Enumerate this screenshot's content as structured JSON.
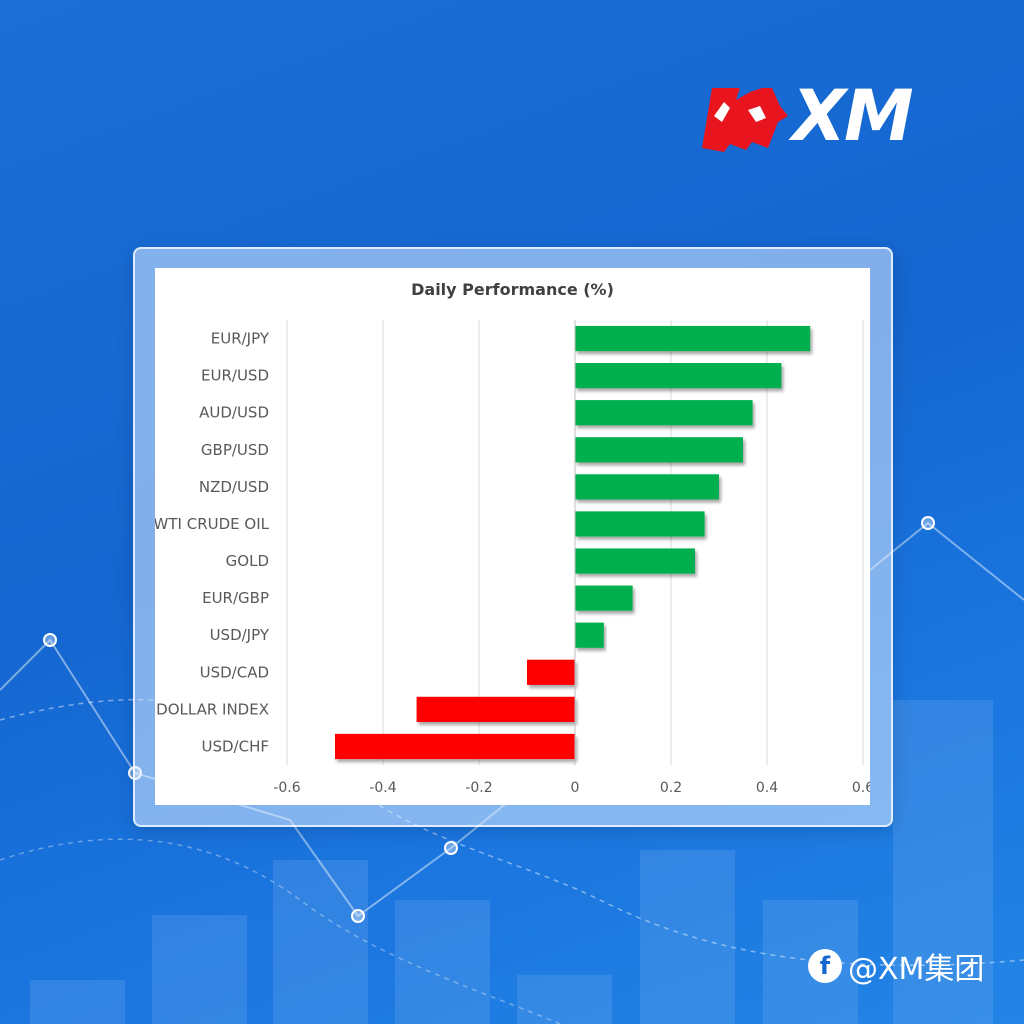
{
  "brand": {
    "logo_text": "XM",
    "accent_red": "#e8141e"
  },
  "social": {
    "icon": "facebook-icon",
    "handle": "@XM集团"
  },
  "colors": {
    "positive": "#00b050",
    "negative": "#ff0000",
    "grid": "#d9d9d9",
    "axis_text": "#595959"
  },
  "chart_data": {
    "type": "bar",
    "orientation": "horizontal",
    "title": "Daily Performance (%)",
    "xlabel": "",
    "ylabel": "",
    "categories": [
      "EUR/JPY",
      "EUR/USD",
      "AUD/USD",
      "GBP/USD",
      "NZD/USD",
      "WTI CRUDE OIL",
      "GOLD",
      "EUR/GBP",
      "USD/JPY",
      "USD/CAD",
      "DOLLAR INDEX",
      "USD/CHF"
    ],
    "values": [
      0.49,
      0.43,
      0.37,
      0.35,
      0.3,
      0.27,
      0.25,
      0.12,
      0.06,
      -0.1,
      -0.33,
      -0.5
    ],
    "xlim": [
      -0.6,
      0.6
    ],
    "x_ticks": [
      -0.6,
      -0.4,
      -0.2,
      0,
      0.2,
      0.4,
      0.6
    ],
    "x_tick_labels": [
      "-0.6",
      "-0.4",
      "-0.2",
      "0",
      "0.2",
      "0.4",
      "0.6"
    ],
    "grid": "vertical",
    "legend": "none"
  }
}
